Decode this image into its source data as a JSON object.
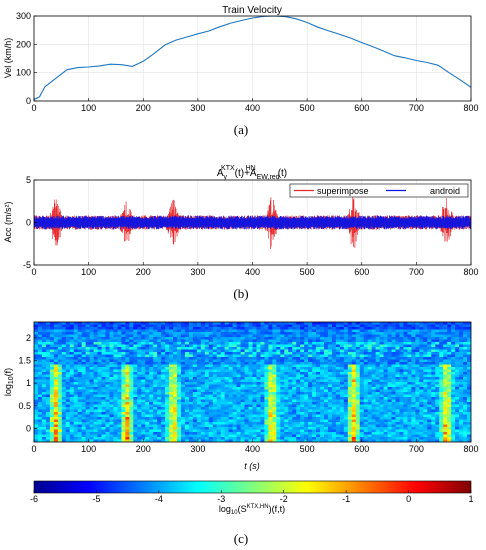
{
  "figure": {
    "captions": [
      "(a)",
      "(b)",
      "(c)"
    ]
  },
  "chart_data": [
    {
      "type": "line",
      "title": "Train Velocity",
      "xlabel": "",
      "ylabel": "Vel (km/h)",
      "xlim": [
        0,
        800
      ],
      "ylim": [
        0,
        300
      ],
      "xticks": [
        0,
        100,
        200,
        300,
        400,
        500,
        600,
        700,
        800
      ],
      "yticks": [
        0,
        100,
        200,
        300
      ],
      "grid": true,
      "series": [
        {
          "color": "#1f77c4",
          "x": [
            0,
            10,
            20,
            40,
            60,
            80,
            100,
            120,
            140,
            160,
            180,
            200,
            220,
            240,
            260,
            280,
            300,
            320,
            340,
            360,
            380,
            400,
            420,
            440,
            460,
            480,
            500,
            520,
            540,
            560,
            580,
            600,
            620,
            640,
            660,
            680,
            700,
            720,
            740,
            760,
            780,
            800
          ],
          "y": [
            5,
            15,
            50,
            80,
            110,
            118,
            120,
            124,
            130,
            128,
            122,
            140,
            168,
            198,
            215,
            226,
            237,
            247,
            262,
            275,
            284,
            293,
            299,
            300,
            298,
            290,
            277,
            260,
            247,
            235,
            222,
            206,
            192,
            176,
            160,
            152,
            143,
            136,
            126,
            100,
            75,
            48
          ]
        }
      ]
    },
    {
      "type": "line",
      "title_parts": [
        "A",
        "y",
        "KTX",
        "(t)+A",
        "EW,red",
        "HN",
        "(t)"
      ],
      "xlabel": "",
      "ylabel": "Acc (m/s²)",
      "xlim": [
        0,
        800
      ],
      "ylim": [
        -5,
        5
      ],
      "xticks": [
        0,
        100,
        200,
        300,
        400,
        500,
        600,
        700,
        800
      ],
      "yticks": [
        -5,
        0,
        5
      ],
      "grid": true,
      "legend_position": "top-right",
      "series": [
        {
          "name": "superimpose",
          "color": "#e8262a",
          "band": 0.85,
          "bursts": [
            {
              "x": 40,
              "amp": 2.8
            },
            {
              "x": 170,
              "amp": 2.4
            },
            {
              "x": 255,
              "amp": 2.6
            },
            {
              "x": 435,
              "amp": 2.8
            },
            {
              "x": 585,
              "amp": 3.0
            },
            {
              "x": 755,
              "amp": 2.7
            }
          ]
        },
        {
          "name": "android",
          "color": "#0a14e6",
          "band": 0.8
        }
      ]
    },
    {
      "type": "heatmap",
      "title": "",
      "xlabel": "t (s)",
      "ylabel_parts": [
        "log",
        "10",
        "(f)"
      ],
      "xlim": [
        0,
        800
      ],
      "ylim": [
        -0.3,
        2.35
      ],
      "xticks": [
        0,
        100,
        200,
        300,
        400,
        500,
        600,
        700,
        800
      ],
      "yticks": [
        0,
        0.5,
        1,
        1.5,
        2
      ],
      "ytick_labels": [
        "0",
        "0.5",
        "1",
        "1.5",
        "2"
      ],
      "hot_bands_x": [
        40,
        170,
        255,
        435,
        585,
        755
      ],
      "colorbar": {
        "min": -6,
        "max": 1,
        "ticks": [
          -6,
          -5,
          -4,
          -3,
          -2,
          -1,
          0,
          1
        ],
        "label_parts": [
          "log",
          "10",
          "(S",
          "KTX,HN",
          ")(f,t)"
        ]
      }
    }
  ]
}
